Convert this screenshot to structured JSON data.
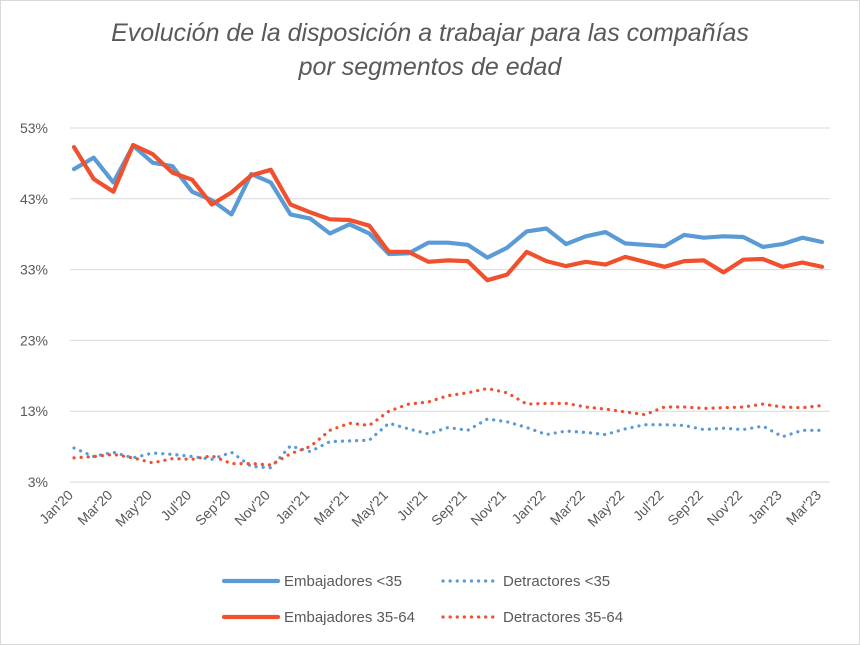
{
  "title_line1": "Evolución de la disposición a trabajar para las compañías",
  "title_line2": "por segmentos de edad",
  "chart_data": {
    "type": "line",
    "title": "Evolución de la disposición a trabajar para las compañías por segmentos de edad",
    "ylim": [
      3,
      53
    ],
    "y_ticks": [
      "53%",
      "43%",
      "33%",
      "23%",
      "13%",
      "3%"
    ],
    "y_tick_values": [
      53,
      43,
      33,
      23,
      13,
      3
    ],
    "x_tick_labels": [
      "Jan'20",
      "Mar'20",
      "May'20",
      "Jul'20",
      "Sep'20",
      "Nov'20",
      "Jan'21",
      "Mar'21",
      "May'21",
      "Jul'21",
      "Sep'21",
      "Nov'21",
      "Jan'22",
      "Mar'22",
      "May'22",
      "Jul'22",
      "Sep'22",
      "Nov'22",
      "Jan'23",
      "Mar'23"
    ],
    "x": [
      "Jan'20",
      "Feb'20",
      "Mar'20",
      "Apr'20",
      "May'20",
      "Jun'20",
      "Jul'20",
      "Aug'20",
      "Sep'20",
      "Oct'20",
      "Nov'20",
      "Dec'20",
      "Jan'21",
      "Feb'21",
      "Mar'21",
      "Apr'21",
      "May'21",
      "Jun'21",
      "Jul'21",
      "Aug'21",
      "Sep'21",
      "Oct'21",
      "Nov'21",
      "Dec'21",
      "Jan'22",
      "Feb'22",
      "Mar'22",
      "Apr'22",
      "May'22",
      "Jun'22",
      "Jul'22",
      "Aug'22",
      "Sep'22",
      "Oct'22",
      "Nov'22",
      "Dec'22",
      "Jan'23",
      "Feb'23",
      "Mar'23"
    ],
    "grid": true,
    "legend_position": "bottom",
    "series": [
      {
        "name": "Embajadores <35",
        "color": "#5b9bd5",
        "style": "solid",
        "values": [
          47.2,
          48.8,
          45.3,
          50.5,
          48.1,
          47.6,
          44.0,
          42.8,
          40.8,
          46.5,
          45.3,
          40.8,
          40.2,
          38.1,
          39.4,
          38.1,
          35.2,
          35.3,
          36.8,
          36.8,
          36.5,
          34.7,
          36.1,
          38.4,
          38.8,
          36.6,
          37.7,
          38.3,
          36.7,
          36.5,
          36.3,
          37.9,
          37.5,
          37.7,
          37.6,
          36.2,
          36.6,
          37.5,
          36.9
        ]
      },
      {
        "name": "Detractores <35",
        "color": "#5b9bd5",
        "style": "dotted",
        "values": [
          7.8,
          6.6,
          7.2,
          6.4,
          7.1,
          6.9,
          6.6,
          6.2,
          7.2,
          5.2,
          5.0,
          8.1,
          7.3,
          8.7,
          8.8,
          8.9,
          11.3,
          10.5,
          9.8,
          10.7,
          10.3,
          11.9,
          11.5,
          10.7,
          9.7,
          10.2,
          10.0,
          9.7,
          10.5,
          11.1,
          11.1,
          11.0,
          10.4,
          10.6,
          10.4,
          10.9,
          9.4,
          10.3,
          10.3
        ]
      },
      {
        "name": "Embajadores 35-64",
        "color": "#f0502d",
        "style": "solid",
        "values": [
          50.3,
          45.8,
          44.0,
          50.6,
          49.3,
          46.7,
          45.7,
          42.2,
          43.9,
          46.3,
          47.1,
          42.2,
          41.1,
          40.1,
          40.0,
          39.2,
          35.5,
          35.5,
          34.1,
          34.3,
          34.2,
          31.5,
          32.3,
          35.5,
          34.2,
          33.5,
          34.1,
          33.7,
          34.8,
          34.1,
          33.4,
          34.2,
          34.3,
          32.6,
          34.4,
          34.5,
          33.4,
          34.0,
          33.4
        ]
      },
      {
        "name": "Detractores 35-64",
        "color": "#f0502d",
        "style": "dotted",
        "values": [
          6.4,
          6.6,
          6.9,
          6.4,
          5.7,
          6.3,
          6.2,
          6.7,
          5.6,
          5.6,
          5.4,
          7.0,
          8.0,
          10.3,
          11.3,
          11.0,
          13.0,
          14.0,
          14.3,
          15.2,
          15.6,
          16.2,
          15.6,
          14.0,
          14.1,
          14.1,
          13.6,
          13.3,
          12.9,
          12.5,
          13.6,
          13.6,
          13.4,
          13.5,
          13.6,
          14.0,
          13.6,
          13.5,
          13.8
        ]
      }
    ]
  }
}
